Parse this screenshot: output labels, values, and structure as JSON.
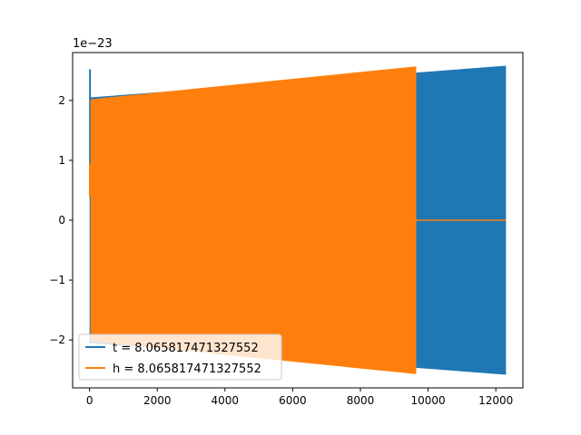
{
  "chart_data": {
    "type": "line",
    "title": "",
    "xlabel": "",
    "ylabel": "",
    "y_offset_label": "1e−23",
    "xlim": [
      -500,
      12800
    ],
    "ylim": [
      -2.8,
      2.8
    ],
    "x_ticks": [
      0,
      2000,
      4000,
      6000,
      8000,
      10000,
      12000
    ],
    "x_tick_labels": [
      "0",
      "2000",
      "4000",
      "6000",
      "8000",
      "10000",
      "12000"
    ],
    "y_ticks": [
      -2,
      -1,
      0,
      1,
      2
    ],
    "y_tick_labels": [
      "−2",
      "−1",
      "0",
      "1",
      "2"
    ],
    "grid": false,
    "legend_position": "lower-left",
    "series": [
      {
        "name": "t = 8.065817471327552",
        "color": "#1f77b4",
        "style": "oscillation",
        "x_start": 0,
        "x_end": 12300,
        "amplitude_start": 2.05,
        "amplitude_end": 2.58,
        "initial_spike": 2.52
      },
      {
        "name": "h = 8.065817471327552",
        "color": "#ff7f0e",
        "style": "oscillation",
        "x_start": 0,
        "x_end": 9650,
        "amplitude_start": 2.02,
        "amplitude_end": 2.57,
        "flat_after": [
          9650,
          12300
        ],
        "flat_value": 0
      }
    ]
  }
}
